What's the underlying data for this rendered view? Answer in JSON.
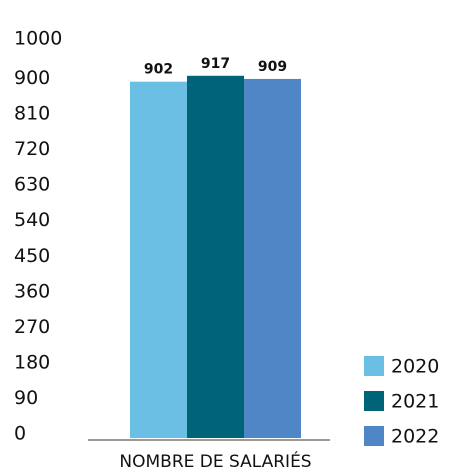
{
  "chart_data": {
    "type": "bar",
    "categories": [
      "NOMBRE DE SALARIÉS"
    ],
    "series": [
      {
        "name": "2020",
        "color": "#6bbfe4",
        "values": [
          902
        ]
      },
      {
        "name": "2021",
        "color": "#006478",
        "values": [
          917
        ]
      },
      {
        "name": "2022",
        "color": "#4f86c6",
        "values": [
          909
        ]
      }
    ],
    "ylim": [
      0,
      1000
    ],
    "yticks": [
      0,
      90,
      180,
      270,
      360,
      450,
      540,
      630,
      720,
      810,
      900,
      1000
    ],
    "legend": "lower right"
  }
}
